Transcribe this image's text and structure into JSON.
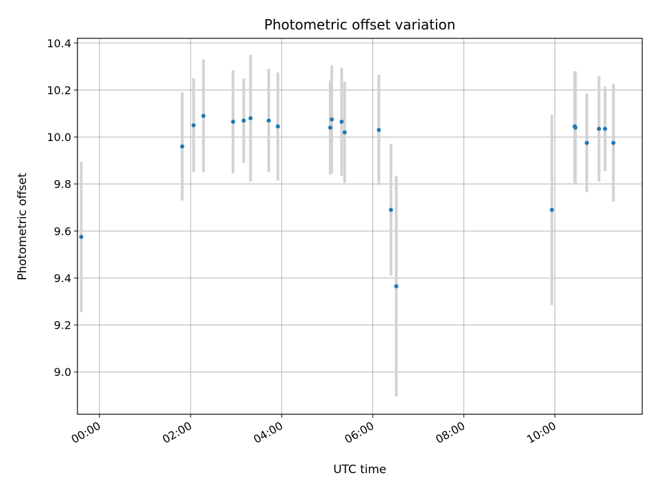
{
  "chart_data": {
    "type": "scatter",
    "title": "Photometric offset variation",
    "xlabel": "UTC time",
    "ylabel": "Photometric offset",
    "xlim": [
      "-00:29",
      "11:55"
    ],
    "ylim": [
      8.82,
      10.42
    ],
    "xticks": [
      "00:00",
      "02:00",
      "04:00",
      "06:00",
      "08:00",
      "10:00"
    ],
    "yticks": [
      9.0,
      9.2,
      9.4,
      9.6,
      9.8,
      10.0,
      10.2,
      10.4
    ],
    "grid": true,
    "marker_color": "#1f77b4",
    "errorbar_color": "#d3d3d3",
    "points": [
      {
        "t": "-00:24",
        "y": 9.575,
        "err": 0.32
      },
      {
        "t": "01:49",
        "y": 9.96,
        "err": 0.23
      },
      {
        "t": "02:04",
        "y": 10.05,
        "err": 0.2
      },
      {
        "t": "02:17",
        "y": 10.09,
        "err": 0.24
      },
      {
        "t": "02:56",
        "y": 10.065,
        "err": 0.22
      },
      {
        "t": "03:10",
        "y": 10.07,
        "err": 0.18
      },
      {
        "t": "03:19",
        "y": 10.08,
        "err": 0.27
      },
      {
        "t": "03:43",
        "y": 10.07,
        "err": 0.22
      },
      {
        "t": "03:55",
        "y": 10.045,
        "err": 0.23
      },
      {
        "t": "05:04",
        "y": 10.04,
        "err": 0.2
      },
      {
        "t": "05:06",
        "y": 10.075,
        "err": 0.23
      },
      {
        "t": "05:19",
        "y": 10.065,
        "err": 0.23
      },
      {
        "t": "05:23",
        "y": 10.02,
        "err": 0.215
      },
      {
        "t": "06:08",
        "y": 10.03,
        "err": 0.235
      },
      {
        "t": "06:24",
        "y": 9.69,
        "err": 0.28
      },
      {
        "t": "06:31",
        "y": 9.365,
        "err": 0.47
      },
      {
        "t": "09:56",
        "y": 9.69,
        "err": 0.405
      },
      {
        "t": "10:26",
        "y": 10.045,
        "err": 0.235
      },
      {
        "t": "10:27",
        "y": 10.04,
        "err": 0.24
      },
      {
        "t": "10:42",
        "y": 9.975,
        "err": 0.21
      },
      {
        "t": "10:58",
        "y": 10.035,
        "err": 0.225
      },
      {
        "t": "11:06",
        "y": 10.035,
        "err": 0.18
      },
      {
        "t": "11:17",
        "y": 9.975,
        "err": 0.25
      }
    ]
  }
}
